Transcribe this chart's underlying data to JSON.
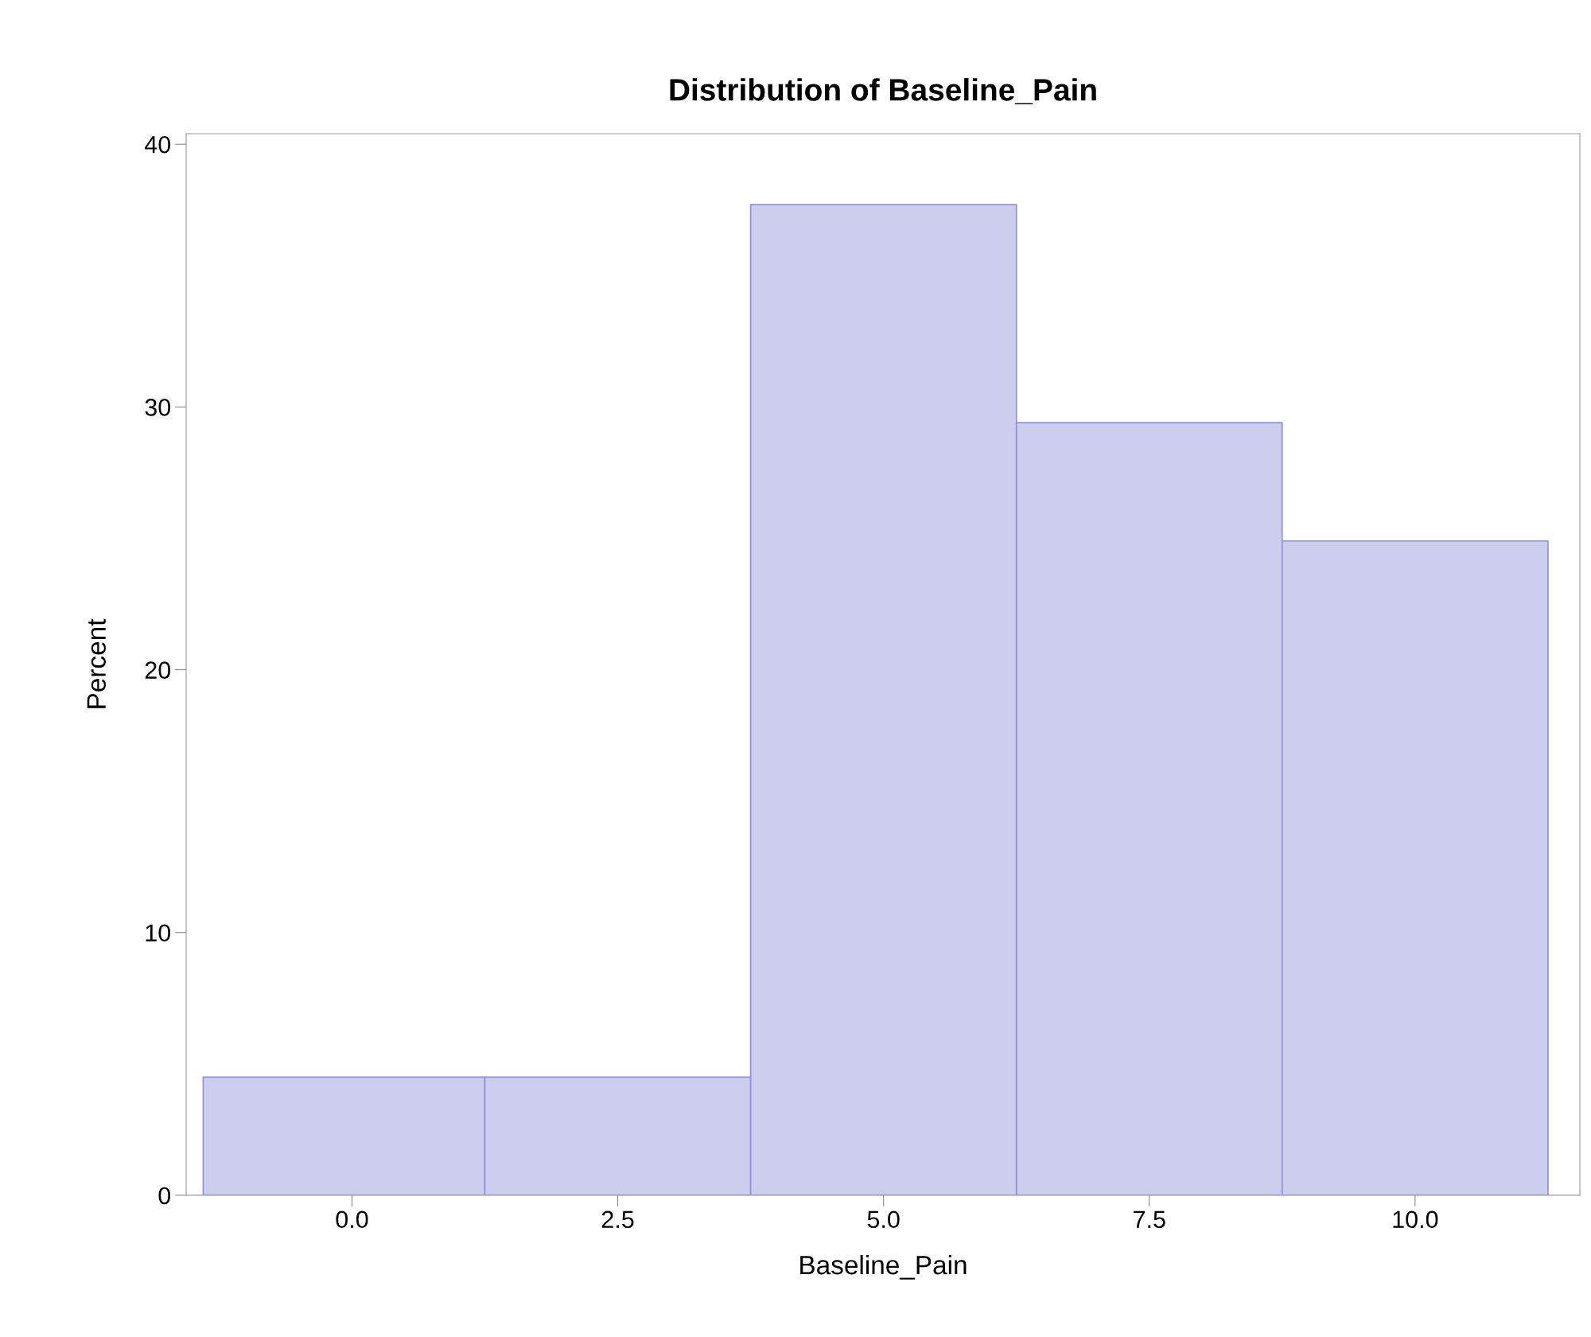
{
  "chart_data": {
    "type": "histogram",
    "title": "Distribution of Baseline_Pain",
    "xlabel": "Baseline_Pain",
    "ylabel": "Percent",
    "bins": [
      -1.4,
      1.25,
      3.75,
      6.25,
      8.75,
      11.25
    ],
    "values": [
      4.5,
      4.5,
      37.7,
      29.4,
      24.9
    ],
    "color": "#cdcded",
    "xlim": [
      -1.56,
      11.55
    ],
    "xticks": [
      {
        "value": 0,
        "label": "0.0"
      },
      2.5,
      {
        "value": 5,
        "label": "5.0"
      },
      7.5,
      {
        "value": 10,
        "label": "10.0"
      }
    ],
    "ylim": [
      0,
      40.4
    ],
    "yticks": [
      0,
      10,
      20,
      30,
      40
    ],
    "grid": false
  }
}
